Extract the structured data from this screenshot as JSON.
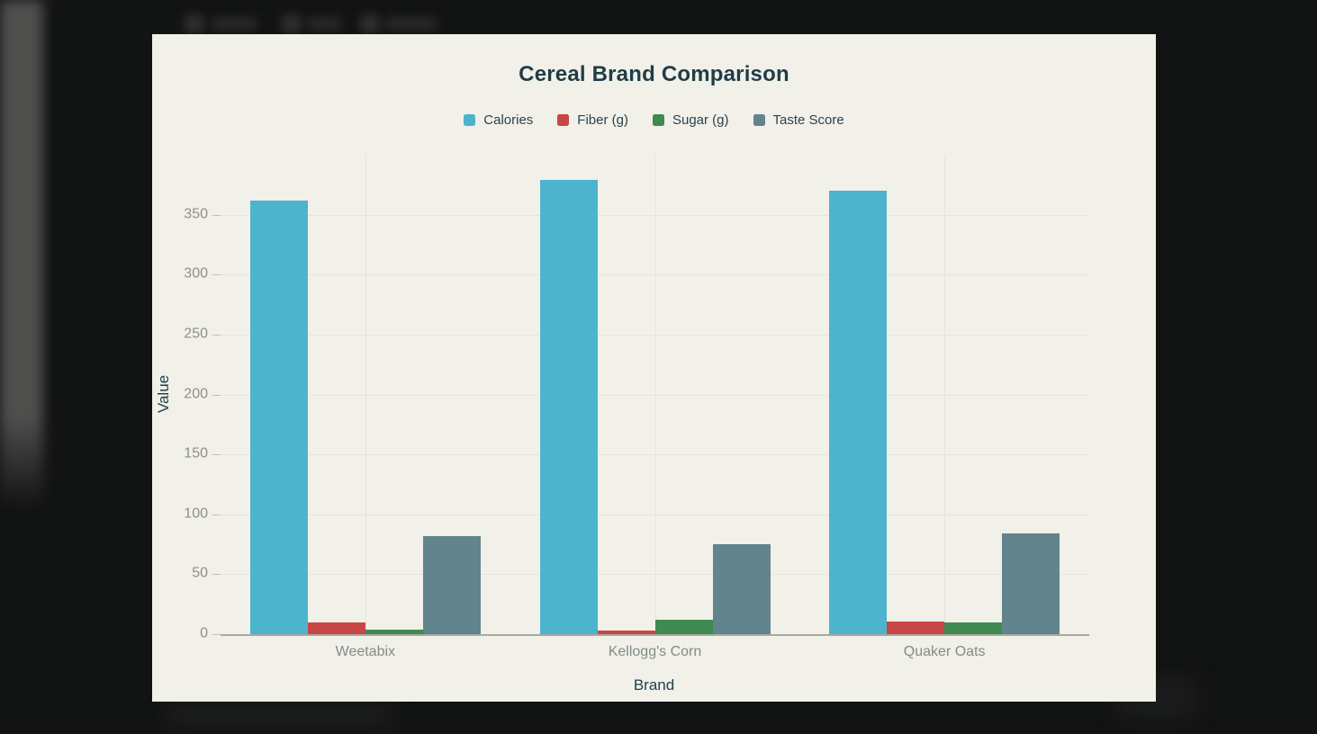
{
  "colors": {
    "page_bg": "#121413",
    "panel_bg": "#f1f0e9",
    "title_text": "#1f3d47",
    "tick_text": "#8f8e88",
    "category_text": "#828c89",
    "gridline": "#e5e4de",
    "axis_line": "#a9a8a2"
  },
  "chart_data": {
    "type": "bar",
    "title": "Cereal Brand Comparison",
    "xlabel": "Brand",
    "ylabel": "Value",
    "categories": [
      "Weetabix",
      "Kellogg's Corn",
      "Quaker Oats"
    ],
    "series": [
      {
        "name": "Calories",
        "color": "#4db4cd",
        "values": [
          362,
          379,
          370
        ]
      },
      {
        "name": "Fiber (g)",
        "color": "#c94646",
        "values": [
          10,
          3,
          10.5
        ]
      },
      {
        "name": "Sugar (g)",
        "color": "#3e8a50",
        "values": [
          4,
          12,
          10
        ]
      },
      {
        "name": "Taste Score",
        "color": "#62848d",
        "values": [
          82,
          75,
          84
        ]
      }
    ],
    "y_ticks": [
      0,
      50,
      100,
      150,
      200,
      250,
      300,
      350
    ],
    "ylim": [
      0,
      400
    ],
    "grid": true,
    "legend_position": "top"
  }
}
